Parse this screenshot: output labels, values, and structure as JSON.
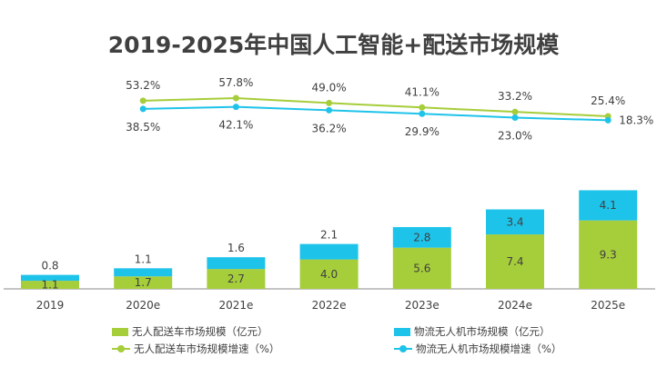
{
  "chart_data": {
    "type": "bar+line",
    "title": "2019-2025年中国人工智能+配送市场规模",
    "categories": [
      "2019",
      "2020e",
      "2021e",
      "2022e",
      "2023e",
      "2024e",
      "2025e"
    ],
    "bar_series": [
      {
        "name": "无人配送车市场规模（亿元）",
        "color": "#a6cd3a",
        "values": [
          1.1,
          1.7,
          2.7,
          4.0,
          5.6,
          7.4,
          9.3
        ]
      },
      {
        "name": "物流无人机市场规模（亿元）",
        "color": "#1ec3ea",
        "values": [
          0.8,
          1.1,
          1.6,
          2.1,
          2.8,
          3.4,
          4.1
        ]
      }
    ],
    "line_series": [
      {
        "name": "无人配送车市场规模增速（%）",
        "color": "#a6cd3a",
        "values": [
          null,
          53.2,
          57.8,
          49.0,
          41.1,
          33.2,
          25.4
        ],
        "labels": [
          null,
          "53.2%",
          "57.8%",
          "49.0%",
          "41.1%",
          "33.2%",
          "25.4%"
        ]
      },
      {
        "name": "物流无人机市场规模增速（%）",
        "color": "#1ec3ea",
        "values": [
          null,
          38.5,
          42.1,
          36.2,
          29.9,
          23.0,
          18.3
        ],
        "labels": [
          null,
          "38.5%",
          "42.1%",
          "36.2%",
          "29.9%",
          "23.0%",
          "18.3%"
        ]
      }
    ],
    "stacked": true,
    "legend": "bottom"
  }
}
